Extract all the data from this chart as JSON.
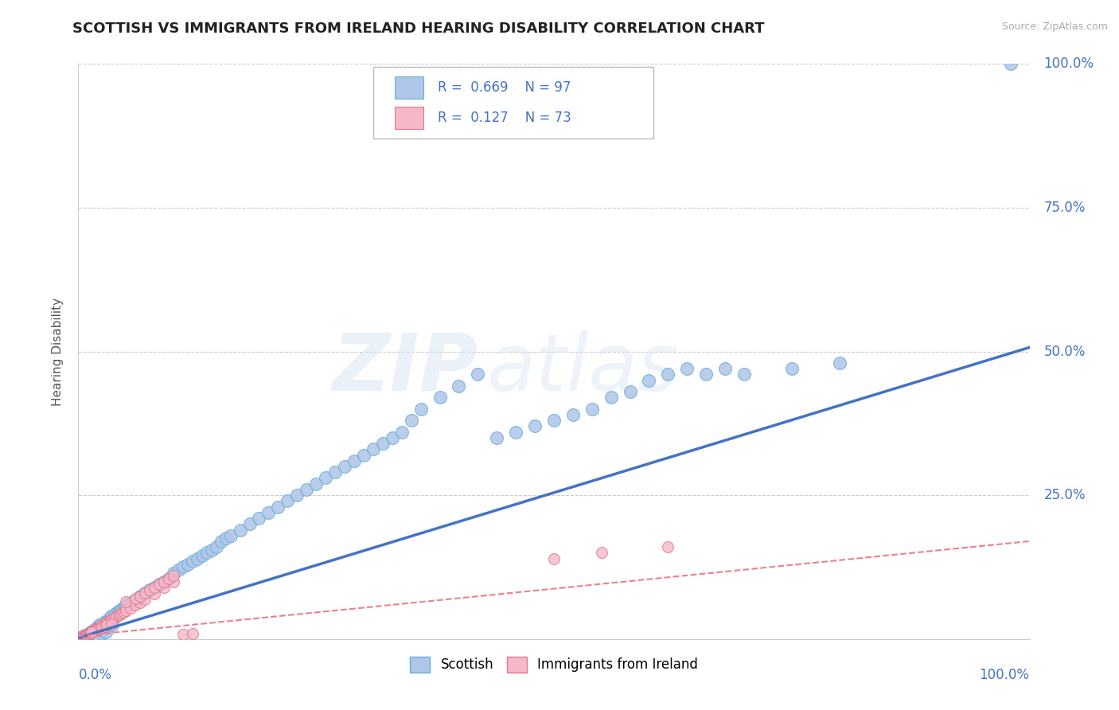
{
  "title": "SCOTTISH VS IMMIGRANTS FROM IRELAND HEARING DISABILITY CORRELATION CHART",
  "source": "Source: ZipAtlas.com",
  "ylabel": "Hearing Disability",
  "y_tick_labels": [
    "25.0%",
    "50.0%",
    "75.0%",
    "100.0%"
  ],
  "y_tick_values": [
    0.25,
    0.5,
    0.75,
    1.0
  ],
  "xlim": [
    0,
    1.0
  ],
  "ylim": [
    0,
    1.0
  ],
  "blue_color": "#6aaed6",
  "blue_face": "#aec6e8",
  "pink_color": "#e07890",
  "pink_face": "#f4b8c8",
  "trend_blue": "#4472c4",
  "trend_pink": "#e8808e",
  "background_color": "#ffffff",
  "grid_color": "#cccccc",
  "title_fontsize": 13,
  "blue_line_slope": 0.505,
  "blue_line_intercept": 0.002,
  "pink_line_slope": 0.165,
  "pink_line_intercept": 0.005,
  "scottish_x": [
    0.005,
    0.008,
    0.01,
    0.012,
    0.013,
    0.015,
    0.016,
    0.017,
    0.018,
    0.019,
    0.02,
    0.021,
    0.022,
    0.023,
    0.024,
    0.025,
    0.026,
    0.027,
    0.028,
    0.029,
    0.03,
    0.032,
    0.034,
    0.035,
    0.036,
    0.038,
    0.04,
    0.042,
    0.044,
    0.046,
    0.048,
    0.05,
    0.052,
    0.054,
    0.056,
    0.058,
    0.06,
    0.065,
    0.07,
    0.075,
    0.08,
    0.085,
    0.09,
    0.095,
    0.1,
    0.105,
    0.11,
    0.115,
    0.12,
    0.125,
    0.13,
    0.135,
    0.14,
    0.145,
    0.15,
    0.155,
    0.16,
    0.17,
    0.18,
    0.19,
    0.2,
    0.21,
    0.22,
    0.23,
    0.24,
    0.25,
    0.26,
    0.27,
    0.28,
    0.29,
    0.3,
    0.31,
    0.32,
    0.33,
    0.34,
    0.35,
    0.36,
    0.38,
    0.4,
    0.42,
    0.44,
    0.46,
    0.48,
    0.5,
    0.52,
    0.54,
    0.56,
    0.58,
    0.6,
    0.62,
    0.64,
    0.66,
    0.68,
    0.7,
    0.75,
    0.8,
    0.98
  ],
  "scottish_y": [
    0.005,
    0.006,
    0.008,
    0.01,
    0.012,
    0.014,
    0.015,
    0.016,
    0.017,
    0.018,
    0.02,
    0.022,
    0.024,
    0.025,
    0.01,
    0.015,
    0.02,
    0.025,
    0.03,
    0.012,
    0.03,
    0.035,
    0.038,
    0.04,
    0.025,
    0.042,
    0.045,
    0.048,
    0.05,
    0.052,
    0.055,
    0.058,
    0.06,
    0.062,
    0.064,
    0.066,
    0.068,
    0.075,
    0.08,
    0.085,
    0.09,
    0.095,
    0.1,
    0.105,
    0.115,
    0.12,
    0.125,
    0.13,
    0.135,
    0.14,
    0.145,
    0.15,
    0.155,
    0.16,
    0.17,
    0.175,
    0.18,
    0.19,
    0.2,
    0.21,
    0.22,
    0.23,
    0.24,
    0.25,
    0.26,
    0.27,
    0.28,
    0.29,
    0.3,
    0.31,
    0.32,
    0.33,
    0.34,
    0.35,
    0.36,
    0.38,
    0.4,
    0.42,
    0.44,
    0.46,
    0.35,
    0.36,
    0.37,
    0.38,
    0.39,
    0.4,
    0.42,
    0.43,
    0.45,
    0.46,
    0.47,
    0.46,
    0.47,
    0.46,
    0.47,
    0.48,
    1.0
  ],
  "ireland_x": [
    0.002,
    0.004,
    0.005,
    0.006,
    0.007,
    0.008,
    0.009,
    0.01,
    0.011,
    0.012,
    0.013,
    0.014,
    0.015,
    0.016,
    0.017,
    0.018,
    0.019,
    0.02,
    0.022,
    0.024,
    0.026,
    0.028,
    0.03,
    0.032,
    0.034,
    0.036,
    0.038,
    0.04,
    0.042,
    0.044,
    0.046,
    0.048,
    0.05,
    0.055,
    0.06,
    0.065,
    0.07,
    0.08,
    0.09,
    0.1,
    0.11,
    0.12,
    0.015,
    0.018,
    0.02,
    0.022,
    0.025,
    0.028,
    0.03,
    0.035,
    0.005,
    0.006,
    0.007,
    0.008,
    0.009,
    0.01,
    0.011,
    0.012,
    0.013,
    0.014,
    0.05,
    0.06,
    0.065,
    0.07,
    0.075,
    0.08,
    0.085,
    0.09,
    0.095,
    0.1,
    0.5,
    0.55,
    0.62
  ],
  "ireland_y": [
    0.002,
    0.003,
    0.004,
    0.005,
    0.006,
    0.007,
    0.008,
    0.009,
    0.01,
    0.011,
    0.012,
    0.013,
    0.014,
    0.015,
    0.016,
    0.017,
    0.018,
    0.019,
    0.021,
    0.023,
    0.025,
    0.027,
    0.029,
    0.031,
    0.033,
    0.035,
    0.037,
    0.039,
    0.041,
    0.043,
    0.045,
    0.047,
    0.049,
    0.054,
    0.059,
    0.064,
    0.069,
    0.079,
    0.089,
    0.099,
    0.008,
    0.01,
    0.012,
    0.014,
    0.016,
    0.018,
    0.02,
    0.022,
    0.024,
    0.026,
    0.003,
    0.004,
    0.005,
    0.006,
    0.007,
    0.008,
    0.009,
    0.01,
    0.011,
    0.012,
    0.065,
    0.07,
    0.075,
    0.08,
    0.085,
    0.09,
    0.095,
    0.1,
    0.105,
    0.11,
    0.14,
    0.15,
    0.16
  ]
}
